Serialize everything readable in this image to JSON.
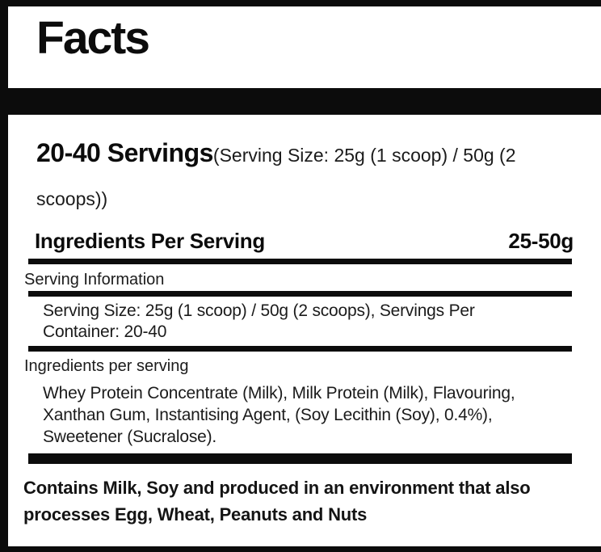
{
  "colors": {
    "bar": "#0c0c0c",
    "text": "#1b1b1b",
    "background": "#ffffff"
  },
  "header": {
    "title": "Facts"
  },
  "servings": {
    "headline": "20-40 Servings",
    "detail": "(Serving Size: 25g (1 scoop) / 50g (2 scoops))"
  },
  "ingredients_per_serving_row": {
    "label": "Ingredients Per Serving",
    "amount": "25-50g"
  },
  "sections": [
    {
      "label": "Serving Information",
      "body": "Serving Size: 25g (1 scoop) / 50g (2 scoops), Servings Per Container: 20-40"
    },
    {
      "label": "Ingredients per serving",
      "body": "Whey Protein Concentrate (Milk), Milk Protein (Milk), Flavouring, Xanthan Gum, Instantising Agent, (Soy Lecithin (Soy), 0.4%), Sweetener (Sucralose)."
    }
  ],
  "allergen_note": "Contains Milk, Soy and produced in an environment that also processes Egg, Wheat, Peanuts and Nuts"
}
